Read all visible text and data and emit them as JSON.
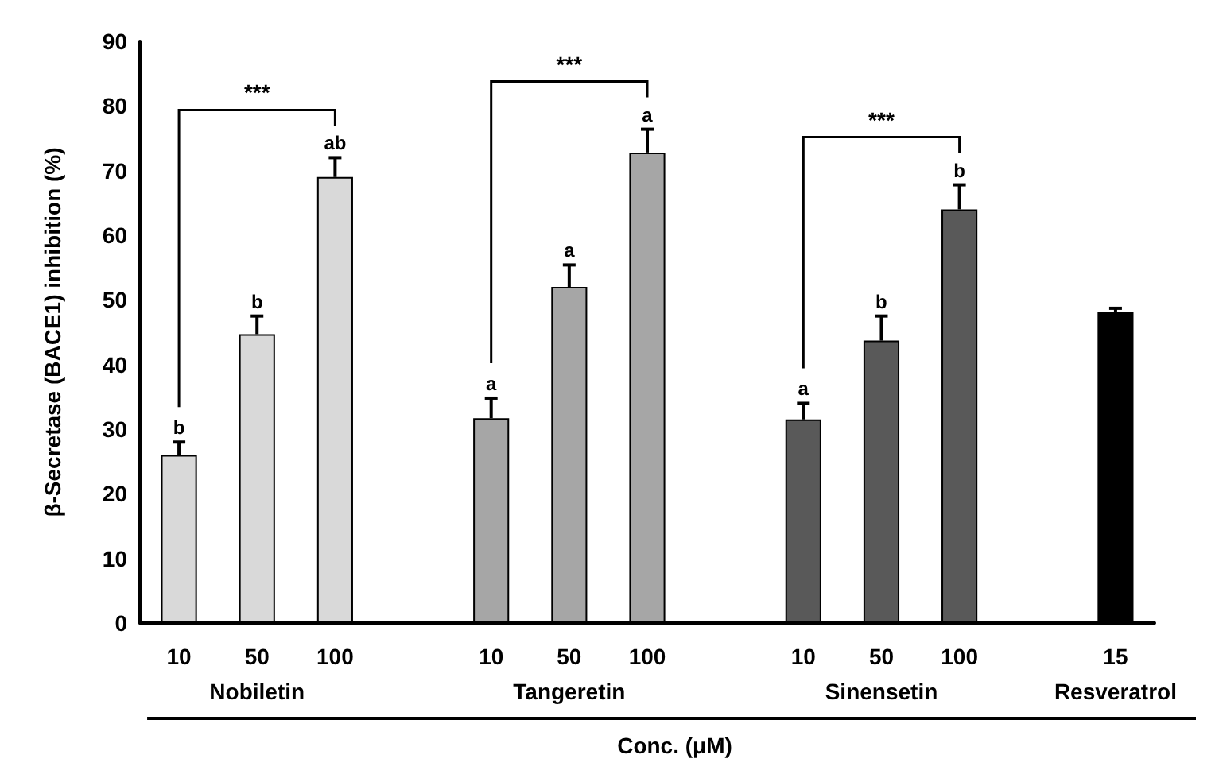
{
  "chart_data": {
    "type": "bar",
    "categories": [
      "10",
      "50",
      "100",
      null,
      "10",
      "50",
      "100",
      null,
      "10",
      "50",
      "100",
      null,
      "15"
    ],
    "values": [
      26,
      44.7,
      69,
      null,
      31.7,
      52,
      72.8,
      null,
      31.5,
      43.7,
      64,
      null,
      48.2
    ],
    "colors": [
      "#d9d9d9",
      "#d9d9d9",
      "#d9d9d9",
      null,
      "#a6a6a6",
      "#a6a6a6",
      "#a6a6a6",
      null,
      "#595959",
      "#595959",
      "#595959",
      null,
      "#000000"
    ],
    "errors": [
      [
        26,
        28
      ],
      [
        44.7,
        47.5
      ],
      [
        69,
        72
      ],
      null,
      [
        31.7,
        34.8
      ],
      [
        52,
        55.4
      ],
      [
        72.8,
        76.4
      ],
      null,
      [
        31.5,
        34
      ],
      [
        43.7,
        47.5
      ],
      [
        64,
        67.8
      ],
      null,
      [
        48.2,
        48.7
      ]
    ],
    "value_labels": [
      "b",
      "b",
      "ab",
      null,
      "a",
      "a",
      "a",
      null,
      "a",
      "b",
      "b",
      null,
      null
    ],
    "ylabel": "β-Secretase (BACE1) inhibition (%)",
    "xlabel": "Conc. (μM)",
    "ylim": [
      0,
      90
    ],
    "yticks": [
      0,
      10,
      20,
      30,
      40,
      50,
      60,
      70,
      80,
      90
    ],
    "annotations": [
      "Nobiletin",
      "Tangeretin",
      "Sinensetin",
      "Resveratrol",
      "***",
      "***",
      "***"
    ]
  }
}
